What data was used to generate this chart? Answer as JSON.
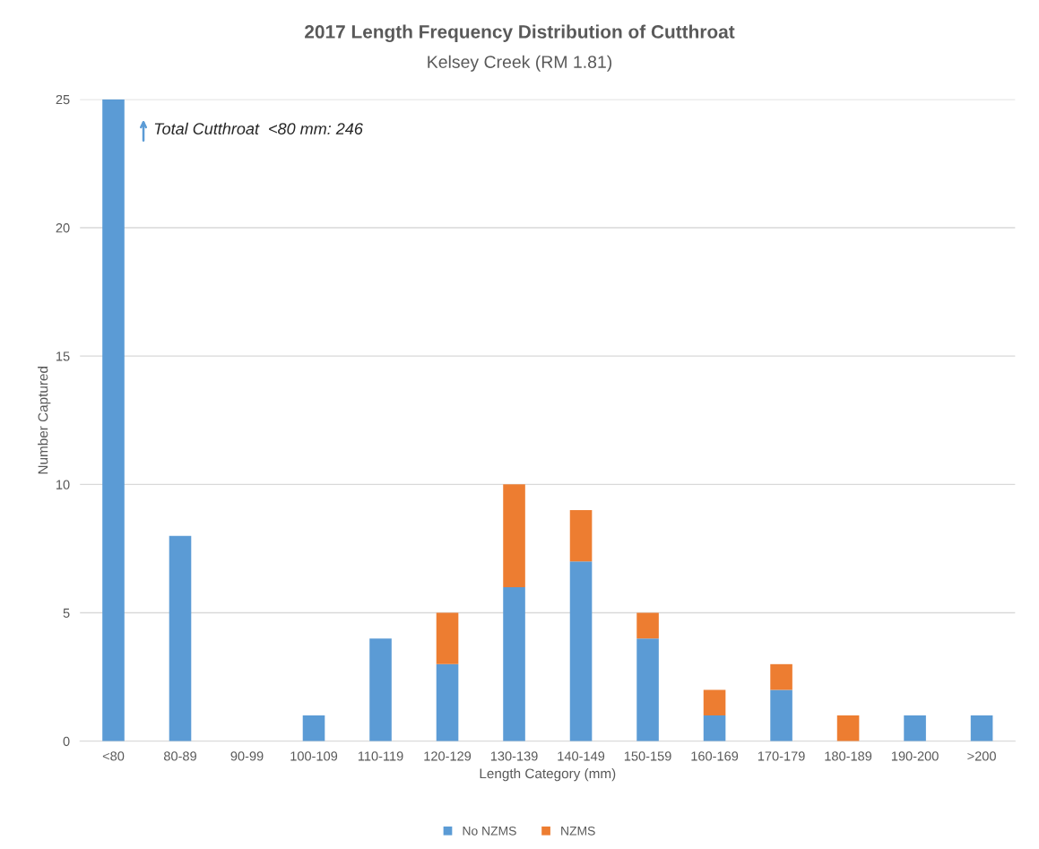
{
  "chart_data": {
    "type": "bar",
    "stacked": true,
    "title": "2017 Length Frequency Distribution of Cutthroat",
    "subtitle": "Kelsey Creek (RM 1.81)",
    "xlabel": "Length Category (mm)",
    "ylabel": "Number Captured",
    "categories": [
      "<80",
      "80-89",
      "90-99",
      "100-109",
      "110-119",
      "120-129",
      "130-139",
      "140-149",
      "150-159",
      "160-169",
      "170-179",
      "180-189",
      "190-200",
      ">200"
    ],
    "series": [
      {
        "name": "No NZMS",
        "color": "#5b9bd5",
        "values": [
          25,
          8,
          0,
          1,
          4,
          3,
          6,
          7,
          4,
          1,
          2,
          0,
          1,
          1
        ]
      },
      {
        "name": "NZMS",
        "color": "#ed7d31",
        "values": [
          0,
          0,
          0,
          0,
          0,
          2,
          4,
          2,
          1,
          1,
          1,
          1,
          0,
          0
        ]
      }
    ],
    "ylim": [
      0,
      25
    ],
    "yticks": [
      0,
      5,
      10,
      15,
      20,
      25
    ],
    "grid": "y",
    "legend": "bottom",
    "annotations": [
      "Total Cutthroat  <80 mm: 246"
    ]
  }
}
